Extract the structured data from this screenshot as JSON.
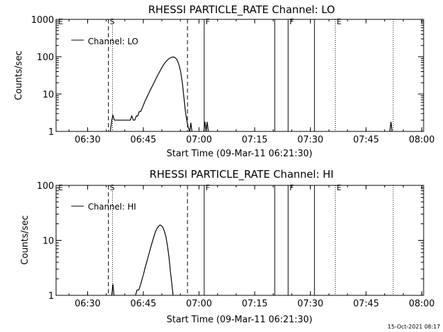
{
  "footer": {
    "timestamp": "15-Oct-2021 08:17"
  },
  "chart_data": [
    {
      "type": "line",
      "title": "RHESSI PARTICLE_RATE Channel: LO",
      "xlabel": "Start Time (09-Mar-11 06:21:30)",
      "ylabel": "Counts/sec",
      "yscale": "log",
      "ylim": [
        1,
        1000
      ],
      "xlim_minutes": [
        0,
        99
      ],
      "x_ticks": [
        "06:30",
        "06:45",
        "07:00",
        "07:15",
        "07:30",
        "07:45",
        "08:00"
      ],
      "x_tick_minutes": [
        8.5,
        23.5,
        38.5,
        53.5,
        68.5,
        83.5,
        98.5
      ],
      "y_ticks": [
        "1",
        "10",
        "100",
        "1000"
      ],
      "y_tick_values": [
        1,
        10,
        100,
        1000
      ],
      "legend": {
        "label": "Channel: LO",
        "position": "top-left"
      },
      "markers": [
        {
          "label": "E",
          "minute": 0.2,
          "style": "none"
        },
        {
          "label": "S",
          "minute": 14.1,
          "style": "dashed"
        },
        {
          "label": "",
          "minute": 15.2,
          "style": "dotted"
        },
        {
          "label": "",
          "minute": 35.4,
          "style": "dashed"
        },
        {
          "label": "F",
          "minute": 39.9,
          "style": "solid"
        },
        {
          "label": "",
          "minute": 58.9,
          "style": "solid"
        },
        {
          "label": "F",
          "minute": 62.5,
          "style": "solid"
        },
        {
          "label": "",
          "minute": 69.6,
          "style": "solid"
        },
        {
          "label": "E",
          "minute": 75.2,
          "style": "dotted"
        },
        {
          "label": "",
          "minute": 90.8,
          "style": "dotted"
        }
      ],
      "series": [
        {
          "segments": [
            [
              [
                14.6,
                1.0
              ],
              [
                15.0,
                2.0
              ],
              [
                15.3,
                2.7
              ],
              [
                15.7,
                2.0
              ],
              [
                16.5,
                2.0
              ],
              [
                17.5,
                2.0
              ],
              [
                18.0,
                2.0
              ],
              [
                18.4,
                2.0
              ],
              [
                19.2,
                2.0
              ],
              [
                20.0,
                2.0
              ],
              [
                20.4,
                2.6
              ],
              [
                20.8,
                2.0
              ],
              [
                21.2,
                2.0
              ],
              [
                21.6,
                2.6
              ],
              [
                22.0,
                2.6
              ],
              [
                22.4,
                3.4
              ],
              [
                22.8,
                3.4
              ],
              [
                23.2,
                4.2
              ],
              [
                23.6,
                5.3
              ],
              [
                24.0,
                6.6
              ],
              [
                24.4,
                8.0
              ],
              [
                24.8,
                9.7
              ],
              [
                25.2,
                11.8
              ],
              [
                25.6,
                14.2
              ],
              [
                26.0,
                17.0
              ],
              [
                26.4,
                20.5
              ],
              [
                26.8,
                24.5
              ],
              [
                27.2,
                29.5
              ],
              [
                27.6,
                35.0
              ],
              [
                28.0,
                41.5
              ],
              [
                28.4,
                49.0
              ],
              [
                28.8,
                57.5
              ],
              [
                29.2,
                66.0
              ],
              [
                29.6,
                74.0
              ],
              [
                30.0,
                82.0
              ],
              [
                30.4,
                88.5
              ],
              [
                30.8,
                93.5
              ],
              [
                31.2,
                97.0
              ],
              [
                31.6,
                98.5
              ],
              [
                32.0,
                96.0
              ],
              [
                32.4,
                88.0
              ],
              [
                32.8,
                74.0
              ],
              [
                33.2,
                56.0
              ],
              [
                33.6,
                37.0
              ],
              [
                34.0,
                20.0
              ],
              [
                34.4,
                9.0
              ],
              [
                34.8,
                3.6
              ],
              [
                35.2,
                2.0
              ],
              [
                35.6,
                1.3
              ],
              [
                36.0,
                1.0
              ]
            ],
            [
              [
                36.0,
                1.0
              ],
              [
                36.3,
                1.7
              ],
              [
                36.6,
                1.0
              ]
            ],
            [
              [
                39.8,
                1.0
              ],
              [
                40.1,
                1.8
              ],
              [
                40.4,
                1.0
              ],
              [
                40.7,
                1.8
              ],
              [
                41.0,
                1.0
              ]
            ],
            [
              [
                89.9,
                1.0
              ],
              [
                90.2,
                1.8
              ],
              [
                90.5,
                1.0
              ]
            ]
          ]
        }
      ]
    },
    {
      "type": "line",
      "title": "RHESSI PARTICLE_RATE Channel: HI",
      "xlabel": "Start Time (09-Mar-11 06:21:30)",
      "ylabel": "Counts/sec",
      "yscale": "log",
      "ylim": [
        1,
        100
      ],
      "xlim_minutes": [
        0,
        99
      ],
      "x_ticks": [
        "06:30",
        "06:45",
        "07:00",
        "07:15",
        "07:30",
        "07:45",
        "08:00"
      ],
      "x_tick_minutes": [
        8.5,
        23.5,
        38.5,
        53.5,
        68.5,
        83.5,
        98.5
      ],
      "y_ticks": [
        "1",
        "10",
        "100"
      ],
      "y_tick_values": [
        1,
        10,
        100
      ],
      "legend": {
        "label": "Channel: HI",
        "position": "top-left"
      },
      "markers": [
        {
          "label": "E",
          "minute": 0.2,
          "style": "none"
        },
        {
          "label": "S",
          "minute": 14.1,
          "style": "dashed"
        },
        {
          "label": "",
          "minute": 15.2,
          "style": "dotted"
        },
        {
          "label": "",
          "minute": 35.4,
          "style": "dashed"
        },
        {
          "label": "F",
          "minute": 39.9,
          "style": "solid"
        },
        {
          "label": "",
          "minute": 58.9,
          "style": "solid"
        },
        {
          "label": "F",
          "minute": 62.5,
          "style": "solid"
        },
        {
          "label": "",
          "minute": 69.6,
          "style": "solid"
        },
        {
          "label": "E",
          "minute": 75.2,
          "style": "dotted"
        },
        {
          "label": "",
          "minute": 90.8,
          "style": "dotted"
        }
      ],
      "series": [
        {
          "segments": [
            [
              [
                15.0,
                1.0
              ],
              [
                15.3,
                1.6
              ],
              [
                15.6,
                1.0
              ]
            ],
            [
              [
                21.4,
                1.0
              ],
              [
                21.8,
                1.25
              ],
              [
                22.3,
                1.25
              ],
              [
                22.8,
                1.6
              ],
              [
                23.2,
                2.0
              ],
              [
                23.6,
                2.5
              ],
              [
                24.0,
                3.2
              ],
              [
                24.4,
                4.0
              ],
              [
                24.8,
                5.0
              ],
              [
                25.2,
                6.3
              ],
              [
                25.6,
                7.9
              ],
              [
                26.0,
                9.8
              ],
              [
                26.4,
                12.0
              ],
              [
                26.8,
                14.5
              ],
              [
                27.2,
                16.5
              ],
              [
                27.6,
                18.0
              ],
              [
                28.0,
                19.0
              ],
              [
                28.4,
                18.5
              ],
              [
                28.8,
                17.0
              ],
              [
                29.2,
                14.5
              ],
              [
                29.6,
                11.5
              ],
              [
                30.0,
                8.0
              ],
              [
                30.4,
                5.0
              ],
              [
                30.8,
                2.7
              ],
              [
                31.2,
                1.6
              ],
              [
                31.5,
                1.0
              ]
            ]
          ]
        }
      ]
    }
  ]
}
